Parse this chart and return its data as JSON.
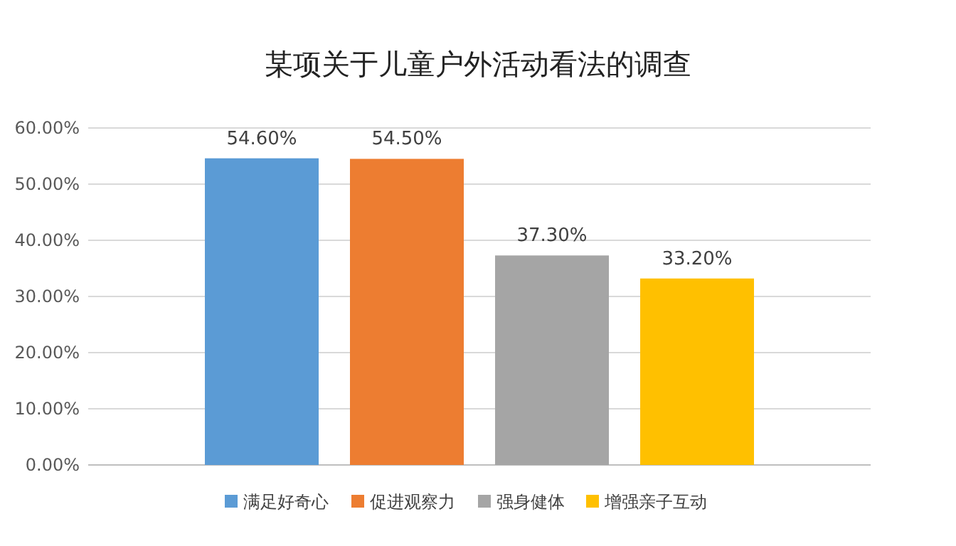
{
  "chart_data": {
    "type": "bar",
    "title": "某项关于儿童户外活动看法的调查",
    "categories": [
      null
    ],
    "series": [
      {
        "name": "满足好奇心",
        "color": "#5b9bd5",
        "values": [
          54.6
        ],
        "value_labels": [
          "54.60%"
        ]
      },
      {
        "name": "促进观察力",
        "color": "#ed7d31",
        "values": [
          54.5
        ],
        "value_labels": [
          "54.50%"
        ]
      },
      {
        "name": "强身健体",
        "color": "#a5a5a5",
        "values": [
          37.3
        ],
        "value_labels": [
          "37.30%"
        ]
      },
      {
        "name": "增强亲子互动",
        "color": "#ffc000",
        "values": [
          33.2
        ],
        "value_labels": [
          "33.20%"
        ]
      }
    ],
    "ylim": [
      0,
      60
    ],
    "yticks": [
      {
        "value": 0,
        "label": "0.00%"
      },
      {
        "value": 10,
        "label": "10.00%"
      },
      {
        "value": 20,
        "label": "20.00%"
      },
      {
        "value": 30,
        "label": "30.00%"
      },
      {
        "value": 40,
        "label": "40.00%"
      },
      {
        "value": 50,
        "label": "50.00%"
      },
      {
        "value": 60,
        "label": "60.00%"
      }
    ],
    "grid": "y",
    "legend": "bottom"
  }
}
